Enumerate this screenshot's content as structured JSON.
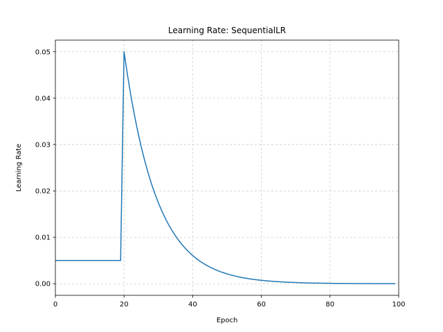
{
  "chart_data": {
    "type": "line",
    "title": "Learning Rate: SequentialLR",
    "xlabel": "Epoch",
    "ylabel": "Learning Rate",
    "xlim": [
      0,
      100
    ],
    "ylim": [
      -0.0025,
      0.0525
    ],
    "xticks": [
      0,
      20,
      40,
      60,
      80,
      100
    ],
    "xtick_labels": [
      "0",
      "20",
      "40",
      "60",
      "80",
      "100"
    ],
    "yticks": [
      0.0,
      0.01,
      0.02,
      0.03,
      0.04,
      0.05
    ],
    "ytick_labels": [
      "0.00",
      "0.01",
      "0.02",
      "0.03",
      "0.04",
      "0.05"
    ],
    "grid": true,
    "line_color": "#1f77b4",
    "grid_color": "#cccccc",
    "series": [
      {
        "x": [
          0,
          1,
          2,
          3,
          4,
          5,
          6,
          7,
          8,
          9,
          10,
          11,
          12,
          13,
          14,
          15,
          16,
          17,
          18,
          19,
          20,
          21,
          22,
          23,
          24,
          25,
          26,
          27,
          28,
          29,
          30,
          31,
          32,
          33,
          34,
          35,
          36,
          37,
          38,
          39,
          40,
          41,
          42,
          43,
          44,
          45,
          46,
          47,
          48,
          49,
          50,
          51,
          52,
          53,
          54,
          55,
          56,
          57,
          58,
          59,
          60,
          61,
          62,
          63,
          64,
          65,
          66,
          67,
          68,
          69,
          70,
          71,
          72,
          73,
          74,
          75,
          76,
          77,
          78,
          79,
          80,
          81,
          82,
          83,
          84,
          85,
          86,
          87,
          88,
          89,
          90,
          91,
          92,
          93,
          94,
          95,
          96,
          97,
          98,
          99
        ],
        "y": [
          0.005,
          0.005,
          0.005,
          0.005,
          0.005,
          0.005,
          0.005,
          0.005,
          0.005,
          0.005,
          0.005,
          0.005,
          0.005,
          0.005,
          0.005,
          0.005,
          0.005,
          0.005,
          0.005,
          0.005,
          0.05,
          0.045,
          0.0405,
          0.03645,
          0.0328,
          0.02952,
          0.02657,
          0.02391,
          0.02152,
          0.01937,
          0.01743,
          0.01569,
          0.01412,
          0.01271,
          0.01144,
          0.01029,
          0.00926,
          0.00834,
          0.0075,
          0.00675,
          0.00608,
          0.00547,
          0.00492,
          0.00443,
          0.00399,
          0.00359,
          0.00323,
          0.00291,
          0.00262,
          0.00236,
          0.00212,
          0.00191,
          0.00172,
          0.00155,
          0.00139,
          0.00125,
          0.00113,
          0.00101,
          0.00091,
          0.00082,
          0.00074,
          0.00067,
          0.0006,
          0.00054,
          0.00049,
          0.00044,
          0.00039,
          0.00035,
          0.00032,
          0.00029,
          0.00026,
          0.00023,
          0.00021,
          0.00019,
          0.00017,
          0.00015,
          0.00014,
          0.00012,
          0.00011,
          0.0001,
          9e-05,
          8e-05,
          7e-05,
          7e-05,
          6e-05,
          5e-05,
          5e-05,
          4e-05,
          4e-05,
          3e-05,
          3e-05,
          3e-05,
          3e-05,
          2e-05,
          2e-05,
          2e-05,
          2e-05,
          1e-05,
          1e-05,
          1e-05
        ]
      }
    ]
  }
}
